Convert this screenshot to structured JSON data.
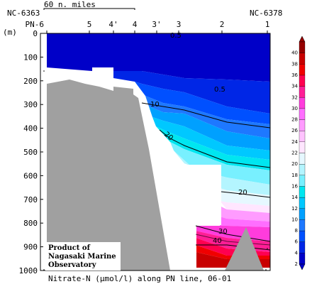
{
  "chart_data": {
    "type": "contour-section",
    "caption": "Nitrate-N (μmol/l) along PN line, 06-01",
    "y_unit": "(m)",
    "ylim": [
      0,
      1000
    ],
    "y_ticks": [
      0,
      100,
      200,
      300,
      400,
      500,
      600,
      700,
      800,
      900,
      1000
    ],
    "stations": [
      "PN-6",
      "5",
      "4'",
      "4",
      "3'",
      "3",
      "2",
      "1"
    ],
    "station_top_labels": {
      "left": "NC-6363",
      "right": "NC-6378"
    },
    "distance_scale": "60 n. miles",
    "contour_labels": [
      "0.5",
      "0.5",
      "10",
      "20",
      "20",
      "30",
      "40"
    ],
    "colorbar": {
      "levels": [
        2,
        4,
        6,
        8,
        10,
        12,
        14,
        16,
        18,
        20,
        22,
        24,
        26,
        28,
        30,
        32,
        34,
        36,
        38,
        40
      ],
      "colors": [
        "#0000c8",
        "#0026e6",
        "#0050ff",
        "#1e78ff",
        "#00a0ff",
        "#00c8ff",
        "#00e6f0",
        "#78f0ff",
        "#b4f5ff",
        "#e6f8ff",
        "#ffe6ff",
        "#ffc3ff",
        "#ff9bff",
        "#ff6eff",
        "#ff3cdc",
        "#ff1e96",
        "#ff0050",
        "#f00000",
        "#c80000",
        "#960000"
      ]
    },
    "credit": [
      "Product of",
      "Nagasaki Marine",
      "Observatory"
    ]
  }
}
